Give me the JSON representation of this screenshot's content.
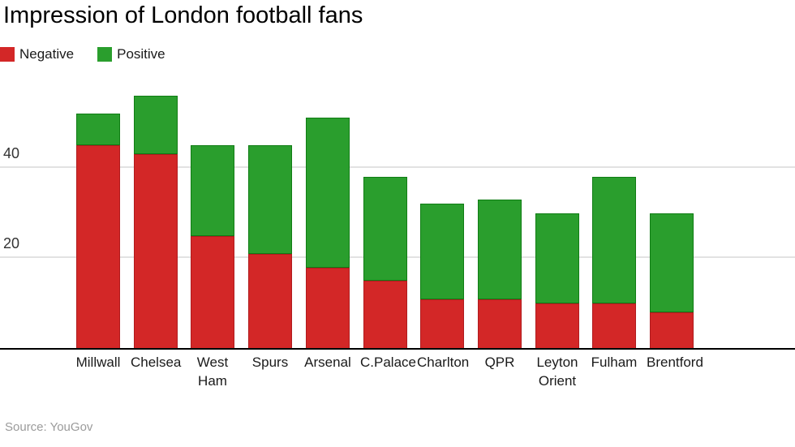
{
  "chart_data": {
    "type": "bar",
    "stacked": true,
    "title": "Impression of London football fans",
    "categories": [
      "Millwall",
      "Chelsea",
      "West Ham",
      "Spurs",
      "Arsenal",
      "C.Palace",
      "Charlton",
      "QPR",
      "Leyton Orient",
      "Fulham",
      "Brentford"
    ],
    "series": [
      {
        "name": "Negative",
        "color": "#d32727",
        "border_color": "#b01b1e",
        "values": [
          45,
          43,
          25,
          21,
          18,
          15,
          11,
          11,
          10,
          10,
          8
        ]
      },
      {
        "name": "Positive",
        "color": "#2a9e2d",
        "border_color": "#107d14",
        "values": [
          7,
          13,
          20,
          24,
          33,
          23,
          21,
          22,
          20,
          28,
          22
        ]
      }
    ],
    "ylim": [
      0,
      61
    ],
    "yticks": [
      20,
      40
    ],
    "grid": true,
    "gridline_color": "#e2e2e2",
    "axis_line_color": "#000000",
    "legend_position": "top-left",
    "source": "Source: YouGov"
  }
}
